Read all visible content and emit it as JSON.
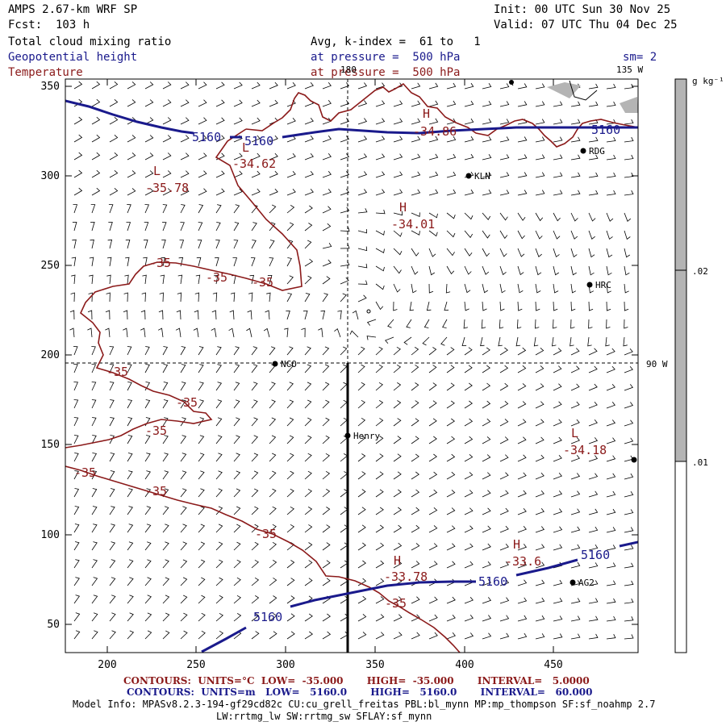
{
  "header": {
    "model": "AMPS 2.67-km WRF SP",
    "init": "Init: 00 UTC Sun 30 Nov 25",
    "fcst": "Fcst:  103 h",
    "valid": "Valid: 07 UTC Thu 04 Dec 25",
    "field1": "Total cloud mixing ratio",
    "field2": "Geopotential height",
    "field3": "Temperature",
    "avg": "Avg, k-index =  61 to   1",
    "pres1": "at pressure =  500 hPa",
    "pres2": "at pressure =  500 hPa",
    "sm": "sm= 2"
  },
  "map": {
    "lon_labels": {
      "top_180": "180",
      "top_135w": "135 W",
      "right_90w": "90 W"
    },
    "x_ticks": [
      "200",
      "250",
      "300",
      "350",
      "400",
      "450"
    ],
    "y_ticks": [
      "350",
      "300",
      "250",
      "200",
      "150",
      "100",
      "50"
    ],
    "stations": [
      {
        "name": "RDG"
      },
      {
        "name": "KLN"
      },
      {
        "name": "HRC"
      },
      {
        "name": "NCO"
      },
      {
        "name": "Henry"
      },
      {
        "name": "AG2"
      }
    ],
    "height_labels": [
      "5160",
      "5160",
      "5160",
      "5160",
      "5160",
      "5160"
    ],
    "temp_contour_labels": [
      "-35",
      "-35",
      "-35",
      "-35",
      "-35",
      "-35",
      "-35",
      "-35",
      "-35",
      "-35"
    ],
    "highs_lows": [
      {
        "kind": "H",
        "value": "-34.86"
      },
      {
        "kind": "L",
        "value": "-34.62"
      },
      {
        "kind": "L",
        "value": "-35.78"
      },
      {
        "kind": "H",
        "value": "-34.01"
      },
      {
        "kind": "L",
        "value": "-34.18"
      },
      {
        "kind": "H",
        "value": "-33.6"
      },
      {
        "kind": "H",
        "value": "-33.78"
      }
    ]
  },
  "colorbar": {
    "units": "g kg⁻¹",
    "labels": [
      ".02",
      ".01"
    ]
  },
  "footer": {
    "line1": "CONTOURS:  UNITS=°C  LOW=  -35.000       HIGH=  -35.000       INTERVAL=   5.0000",
    "line2": "CONTOURS:  UNITS=m   LOW=   5160.0       HIGH=   5160.0       INTERVAL=   60.000",
    "info1": "Model Info: MPASv8.2.3-194-gf29cd82c CU:cu_grell_freitas PBL:bl_mynn MP:mp_thompson SF:sf_noahmp 2.7",
    "info2": "LW:rrtmg_lw SW:rrtmg_sw SFLAY:sf_mynn"
  },
  "colors": {
    "height": "#1a1a8c",
    "temperature": "#8b1a1a",
    "text_blue": "#1a1a8c",
    "colorbar_shade": "#b4b4b4"
  }
}
